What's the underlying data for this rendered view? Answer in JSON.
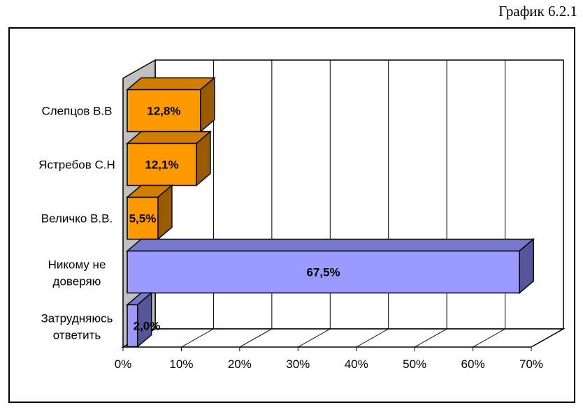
{
  "caption": "График 6.2.1",
  "chart_data": {
    "type": "bar",
    "orientation": "horizontal",
    "categories": [
      "Слепцов В.В",
      "Ястребов С.Н",
      "Величко В.В.",
      "Никому не доверяю",
      "Затрудняюсь ответить"
    ],
    "category_lines": [
      [
        "Слепцов В.В"
      ],
      [
        "Ястребов С.Н"
      ],
      [
        "Величко В.В."
      ],
      [
        "Никому не",
        "доверяю"
      ],
      [
        "Затрудняюсь",
        "ответить"
      ]
    ],
    "values": [
      12.8,
      12.1,
      5.5,
      67.5,
      2.0
    ],
    "value_labels": [
      "12,8%",
      "12,1%",
      "5,5%",
      "67,5%",
      "2,0%"
    ],
    "xlim": [
      0,
      70
    ],
    "xticks": [
      0,
      10,
      20,
      30,
      40,
      50,
      60,
      70
    ],
    "xtick_labels": [
      "0%",
      "10%",
      "20%",
      "30%",
      "40%",
      "50%",
      "60%",
      "70%"
    ],
    "grid": true,
    "three_d": true,
    "colors": {
      "candidate_front": "#ff9900",
      "candidate_top": "#d17d00",
      "candidate_side": "#9a5a00",
      "other_front": "#9999ff",
      "other_top": "#7777cc",
      "other_side": "#555599",
      "wall": "#c0c0c0",
      "gridline": "#808080"
    },
    "bar_color_groups": [
      "candidate",
      "candidate",
      "candidate",
      "other",
      "other"
    ],
    "title": "",
    "xlabel": "",
    "ylabel": ""
  }
}
